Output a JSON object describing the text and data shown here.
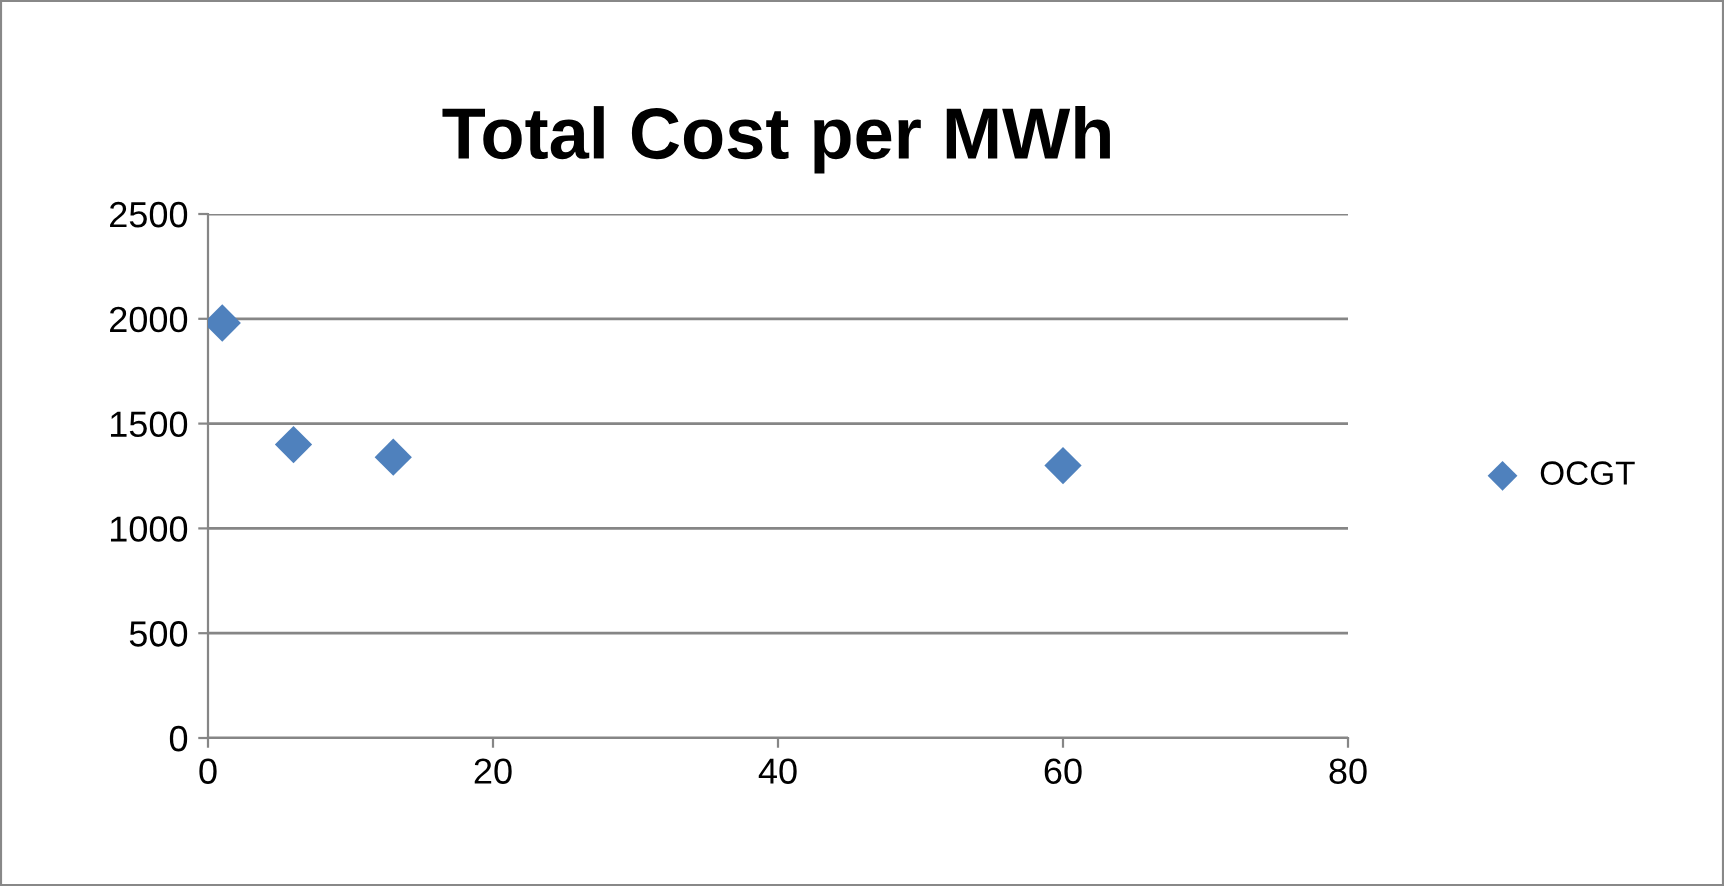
{
  "chart_data": {
    "type": "scatter",
    "title": "Total Cost per MWh",
    "series": [
      {
        "name": "OCGT",
        "color": "#4f81bd",
        "x": [
          1,
          6,
          13,
          60
        ],
        "values": [
          1980,
          1400,
          1340,
          1300
        ]
      }
    ],
    "xlim": [
      0,
      80
    ],
    "xticks": [
      0,
      20,
      40,
      60,
      80
    ],
    "ylim": [
      0,
      2500
    ],
    "yticks": [
      0,
      500,
      1000,
      1500,
      2000,
      2500
    ],
    "grid": "y",
    "legend": "right",
    "marker": "diamond"
  }
}
